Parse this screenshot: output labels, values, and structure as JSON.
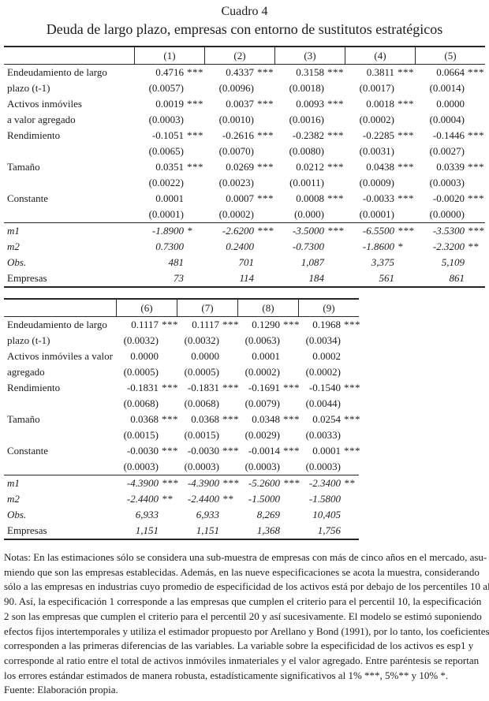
{
  "document": {
    "title": "Cuadro 4",
    "subtitle": "Deuda de largo plazo, empresas con entorno de sustitutos estratégicos"
  },
  "colors": {
    "background": "#ffffff",
    "text": "#1c1c1c",
    "rules": "#262626"
  },
  "table1": {
    "headers": [
      "(1)",
      "(2)",
      "(3)",
      "(4)",
      "(5)"
    ],
    "rows": [
      {
        "label": "Endeudamiento de largo",
        "cells": [
          {
            "v": "0.4716",
            "s": "***"
          },
          {
            "v": "0.4337",
            "s": "***"
          },
          {
            "v": "0.3158",
            "s": "***"
          },
          {
            "v": "0.3811",
            "s": "***"
          },
          {
            "v": "0.0664",
            "s": "***"
          }
        ]
      },
      {
        "label": "plazo (t-1)",
        "cells": [
          {
            "v": "(0.0057)"
          },
          {
            "v": "(0.0096)"
          },
          {
            "v": "(0.0018)"
          },
          {
            "v": "(0.0017)"
          },
          {
            "v": "(0.0014)"
          }
        ]
      },
      {
        "label": "Activos inmóviles",
        "cells": [
          {
            "v": "0.0019",
            "s": "***"
          },
          {
            "v": "0.0037",
            "s": "***"
          },
          {
            "v": "0.0093",
            "s": "***"
          },
          {
            "v": "0.0018",
            "s": "***"
          },
          {
            "v": "0.0000"
          }
        ]
      },
      {
        "label": "a valor agregado",
        "cells": [
          {
            "v": "(0.0003)"
          },
          {
            "v": "(0.0010)"
          },
          {
            "v": "(0.0016)"
          },
          {
            "v": "(0.0002)"
          },
          {
            "v": "(0.0004)"
          }
        ]
      },
      {
        "label": "Rendimiento",
        "cells": [
          {
            "v": "-0.1051",
            "s": "***"
          },
          {
            "v": "-0.2616",
            "s": "***"
          },
          {
            "v": "-0.2382",
            "s": "***"
          },
          {
            "v": "-0.2285",
            "s": "***"
          },
          {
            "v": "-0.1446",
            "s": "***"
          }
        ]
      },
      {
        "label": "",
        "cells": [
          {
            "v": "(0.0065)"
          },
          {
            "v": "(0.0070)"
          },
          {
            "v": "(0.0080)"
          },
          {
            "v": "(0.0031)"
          },
          {
            "v": "(0.0027)"
          }
        ]
      },
      {
        "label": "Tamaño",
        "cells": [
          {
            "v": "0.0351",
            "s": "***"
          },
          {
            "v": "0.0269",
            "s": "***"
          },
          {
            "v": "0.0212",
            "s": "***"
          },
          {
            "v": "0.0438",
            "s": "***"
          },
          {
            "v": "0.0339",
            "s": "***"
          }
        ]
      },
      {
        "label": "",
        "cells": [
          {
            "v": "(0.0022)"
          },
          {
            "v": "(0.0023)"
          },
          {
            "v": "(0.0011)"
          },
          {
            "v": "(0.0009)"
          },
          {
            "v": "(0.0003)"
          }
        ]
      },
      {
        "label": "Constante",
        "cells": [
          {
            "v": "0.0001"
          },
          {
            "v": "0.0007",
            "s": "***"
          },
          {
            "v": "0.0008",
            "s": "***"
          },
          {
            "v": "-0.0033",
            "s": "***"
          },
          {
            "v": "-0.0020",
            "s": "***"
          }
        ]
      },
      {
        "label": "",
        "cells": [
          {
            "v": "(0.0001)"
          },
          {
            "v": "(0.0002)"
          },
          {
            "v": "(0.000)"
          },
          {
            "v": "(0.0001)"
          },
          {
            "v": "(0.0000)"
          }
        ]
      },
      {
        "label": "m1",
        "italic_label": true,
        "italic_values": true,
        "separator_above": true,
        "cells": [
          {
            "v": "-1.8900",
            "s": "*"
          },
          {
            "v": "-2.6200",
            "s": "***"
          },
          {
            "v": "-3.5000",
            "s": "***"
          },
          {
            "v": "-6.5500",
            "s": "***"
          },
          {
            "v": "-3.5300",
            "s": "***"
          }
        ]
      },
      {
        "label": "m2",
        "italic_label": true,
        "italic_values": true,
        "cells": [
          {
            "v": "0.7300"
          },
          {
            "v": "0.2400"
          },
          {
            "v": "-0.7300"
          },
          {
            "v": "-1.8600",
            "s": "*"
          },
          {
            "v": "-2.3200",
            "s": "**"
          }
        ]
      },
      {
        "label": "Obs.",
        "italic_label": true,
        "italic_values": true,
        "cells": [
          {
            "v": "481"
          },
          {
            "v": "701"
          },
          {
            "v": "1,087"
          },
          {
            "v": "3,375"
          },
          {
            "v": "5,109"
          }
        ]
      },
      {
        "label": "Empresas",
        "italic_values": true,
        "cells": [
          {
            "v": "73"
          },
          {
            "v": "114"
          },
          {
            "v": "184"
          },
          {
            "v": "561"
          },
          {
            "v": "861"
          }
        ]
      }
    ]
  },
  "table2": {
    "headers": [
      "(6)",
      "(7)",
      "(8)",
      "(9)"
    ],
    "rows": [
      {
        "label": "Endeudamiento de largo",
        "cells": [
          {
            "v": "0.1117",
            "s": "***"
          },
          {
            "v": "0.1117",
            "s": "***"
          },
          {
            "v": "0.1290",
            "s": "***"
          },
          {
            "v": "0.1968",
            "s": "***"
          }
        ]
      },
      {
        "label": "plazo (t-1)",
        "cells": [
          {
            "v": "(0.0032)"
          },
          {
            "v": "(0.0032)"
          },
          {
            "v": "(0.0063)"
          },
          {
            "v": "(0.0034)"
          }
        ]
      },
      {
        "label": "Activos inmóviles a valor",
        "cells": [
          {
            "v": "0.0000"
          },
          {
            "v": "0.0000"
          },
          {
            "v": "0.0001"
          },
          {
            "v": "0.0002"
          }
        ]
      },
      {
        "label": "agregado",
        "cells": [
          {
            "v": "(0.0005)"
          },
          {
            "v": "(0.0005)"
          },
          {
            "v": "(0.0002)"
          },
          {
            "v": "(0.0002)"
          }
        ]
      },
      {
        "label": "Rendimiento",
        "cells": [
          {
            "v": "-0.1831",
            "s": "***"
          },
          {
            "v": "-0.1831",
            "s": "***"
          },
          {
            "v": "-0.1691",
            "s": "***"
          },
          {
            "v": "-0.1540",
            "s": "***"
          }
        ]
      },
      {
        "label": "",
        "cells": [
          {
            "v": "(0.0068)"
          },
          {
            "v": "(0.0068)"
          },
          {
            "v": "(0.0079)"
          },
          {
            "v": "(0.0044)"
          }
        ]
      },
      {
        "label": "Tamaño",
        "cells": [
          {
            "v": "0.0368",
            "s": "***"
          },
          {
            "v": "0.0368",
            "s": "***"
          },
          {
            "v": "0.0348",
            "s": "***"
          },
          {
            "v": "0.0254",
            "s": "***"
          }
        ]
      },
      {
        "label": "",
        "cells": [
          {
            "v": "(0.0015)"
          },
          {
            "v": "(0.0015)"
          },
          {
            "v": "(0.0029)"
          },
          {
            "v": "(0.0033)"
          }
        ]
      },
      {
        "label": "Constante",
        "cells": [
          {
            "v": "-0.0030",
            "s": "***"
          },
          {
            "v": "-0.0030",
            "s": "***"
          },
          {
            "v": "-0.0014",
            "s": "***"
          },
          {
            "v": "0.0001",
            "s": "***"
          }
        ]
      },
      {
        "label": "",
        "cells": [
          {
            "v": "(0.0003)"
          },
          {
            "v": "(0.0003)"
          },
          {
            "v": "(0.0003)"
          },
          {
            "v": "(0.0003)"
          }
        ]
      },
      {
        "label": "m1",
        "italic_label": true,
        "italic_values": true,
        "separator_above": true,
        "cells": [
          {
            "v": "-4.3900",
            "s": "***"
          },
          {
            "v": "-4.3900",
            "s": "***"
          },
          {
            "v": "-5.2600",
            "s": "***"
          },
          {
            "v": "-2.3400",
            "s": "**"
          }
        ]
      },
      {
        "label": "m2",
        "italic_label": true,
        "italic_values": true,
        "cells": [
          {
            "v": "-2.4400",
            "s": "**"
          },
          {
            "v": "-2.4400",
            "s": "**"
          },
          {
            "v": "-1.5000"
          },
          {
            "v": "-1.5800"
          }
        ]
      },
      {
        "label": "Obs.",
        "italic_label": true,
        "italic_values": true,
        "cells": [
          {
            "v": "6,933"
          },
          {
            "v": "6,933"
          },
          {
            "v": "8,269"
          },
          {
            "v": "10,405"
          }
        ]
      },
      {
        "label": "Empresas",
        "italic_values": true,
        "cells": [
          {
            "v": "1,151"
          },
          {
            "v": "1,151"
          },
          {
            "v": "1,368"
          },
          {
            "v": "1,756"
          }
        ]
      }
    ]
  },
  "notes": {
    "lines": [
      "Notas: En las estimaciones sólo se considera una sub-muestra de empresas con más de cinco años en el mercado, asu-",
      "miendo que son las empresas establecidas. Además, en las nueve especificaciones se acota la muestra, considerando",
      "sólo a las empresas en industrias cuyo promedio de especificidad de los activos está por debajo de los percentiles 10 al",
      "90. Así, la especificación 1 corresponde a las empresas que cumplen el criterio para el percentil 10, la especificación",
      "2 son las empresas que cumplen el criterio para el percentil 20 y así sucesivamente. El modelo se estimó suponiendo",
      "efectos fijos intertemporales y utiliza el estimador propuesto por Arellano y Bond (1991), por lo tanto, los coeficientes",
      "corresponden a las primeras diferencias de las variables. La variable sobre la especificidad de los activos es esp1 y",
      "corresponde al ratio entre el total de activos inmóviles inmateriales y el valor agregado. Entre paréntesis se reportan",
      "los errores estándar estimados de manera robusta, estadísticamente significativos al 1% ***, 5%** y 10% *.",
      "Fuente: Elaboración propia."
    ]
  }
}
